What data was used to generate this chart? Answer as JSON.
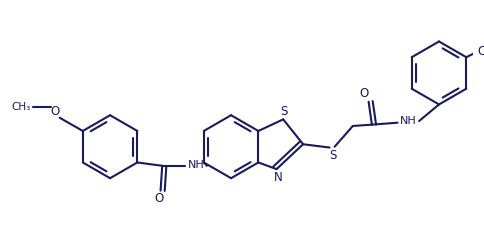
{
  "bg_color": "#ffffff",
  "line_color": "#1a1a5e",
  "lw": 1.5,
  "figsize": [
    4.84,
    2.52
  ],
  "dpi": 100,
  "xlim": [
    -0.5,
    5.2
  ],
  "ylim": [
    -0.2,
    2.8
  ]
}
